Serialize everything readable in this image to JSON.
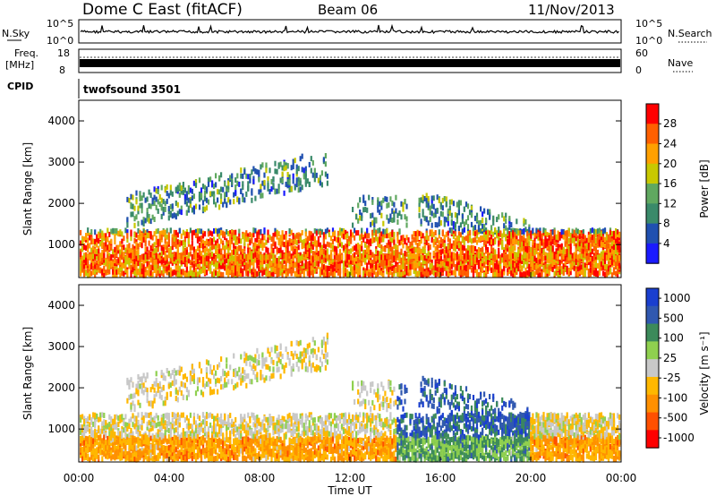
{
  "header": {
    "station": "Dome C East (fitACF)",
    "beam": "Beam 06",
    "date": "11/Nov/2013"
  },
  "panels": {
    "nsky": {
      "label": "N.Sky",
      "ticks": [
        "10^5",
        "10^0"
      ],
      "right_label": "N.Search",
      "right_ticks": [
        "10^5",
        "10^0"
      ]
    },
    "freq": {
      "label_top": "Freq.",
      "label_unit": "[MHz]",
      "ticks": [
        "18",
        "8"
      ],
      "right_label": "Nave",
      "right_ticks": [
        "60",
        "0"
      ]
    },
    "cpid": {
      "label": "CPID",
      "text": "twofsound 3501"
    }
  },
  "colors": {
    "power": [
      "#1a1aff",
      "#2050b0",
      "#3a8a6a",
      "#60a860",
      "#c8c800",
      "#ffa000",
      "#ff6000",
      "#ff0000"
    ],
    "velocity": [
      "#ff0000",
      "#ff5000",
      "#ff9000",
      "#ffb800",
      "#c8c8c8",
      "#8fd04f",
      "#3c8a5a",
      "#3058b0",
      "#1a3fcf"
    ]
  },
  "chart_data": [
    {
      "type": "heatmap",
      "title": "Power",
      "xlabel": "",
      "ylabel": "Slant Range [km]",
      "yticks": [
        "1000",
        "2000",
        "3000",
        "4000"
      ],
      "ylim": [
        200,
        4500
      ],
      "xlim": [
        0,
        24
      ],
      "colorbar": {
        "label": "Power [dB]",
        "ticks": [
          "4",
          "8",
          "12",
          "16",
          "20",
          "24",
          "28"
        ],
        "range": [
          0,
          30
        ]
      }
    },
    {
      "type": "heatmap",
      "title": "Velocity",
      "xlabel": "Time UT",
      "ylabel": "Slant Range [km]",
      "yticks": [
        "1000",
        "2000",
        "3000",
        "4000"
      ],
      "xticks": [
        "00:00",
        "04:00",
        "08:00",
        "12:00",
        "16:00",
        "20:00",
        "00:00"
      ],
      "ylim": [
        200,
        4500
      ],
      "xlim": [
        0,
        24
      ],
      "colorbar": {
        "label": "Velocity [m s⁻¹]",
        "ticks": [
          "1000",
          "500",
          "100",
          "25",
          "-25",
          "-100",
          "-500",
          "-1000"
        ]
      }
    }
  ]
}
